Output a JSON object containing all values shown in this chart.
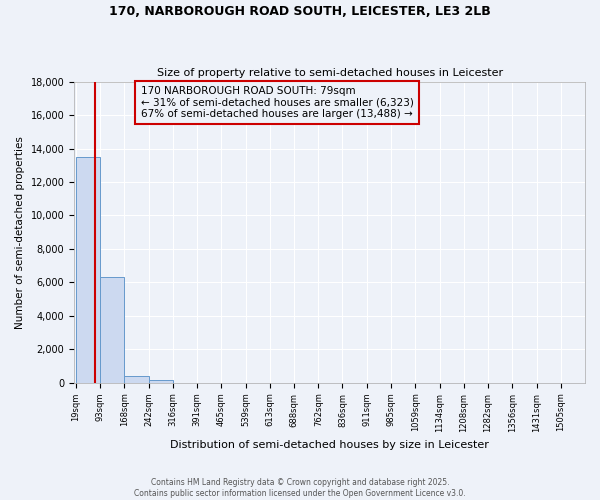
{
  "title_line1": "170, NARBOROUGH ROAD SOUTH, LEICESTER, LE3 2LB",
  "title_line2": "Size of property relative to semi-detached houses in Leicester",
  "xlabel": "Distribution of semi-detached houses by size in Leicester",
  "ylabel": "Number of semi-detached properties",
  "bar_edges": [
    19,
    93,
    168,
    242,
    316,
    391,
    465,
    539,
    613,
    688,
    762,
    836,
    911,
    985,
    1059,
    1134,
    1208,
    1282,
    1356,
    1431,
    1505
  ],
  "bar_heights": [
    13500,
    6300,
    400,
    150,
    0,
    0,
    0,
    0,
    0,
    0,
    0,
    0,
    0,
    0,
    0,
    0,
    0,
    0,
    0,
    0
  ],
  "bar_color": "#ccd9f0",
  "bar_edge_color": "#6699cc",
  "ylim": [
    0,
    18000
  ],
  "yticks": [
    0,
    2000,
    4000,
    6000,
    8000,
    10000,
    12000,
    14000,
    16000,
    18000
  ],
  "property_size": 79,
  "property_line_color": "#cc0000",
  "annotation_text": "170 NARBOROUGH ROAD SOUTH: 79sqm\n← 31% of semi-detached houses are smaller (6,323)\n67% of semi-detached houses are larger (13,488) →",
  "annotation_box_color": "#cc0000",
  "footer_line1": "Contains HM Land Registry data © Crown copyright and database right 2025.",
  "footer_line2": "Contains public sector information licensed under the Open Government Licence v3.0.",
  "bg_color": "#eef2f9",
  "grid_color": "#ffffff",
  "title_fontsize": 9,
  "subtitle_fontsize": 8,
  "ylabel_fontsize": 7.5,
  "xlabel_fontsize": 8,
  "ytick_fontsize": 7,
  "xtick_fontsize": 6
}
